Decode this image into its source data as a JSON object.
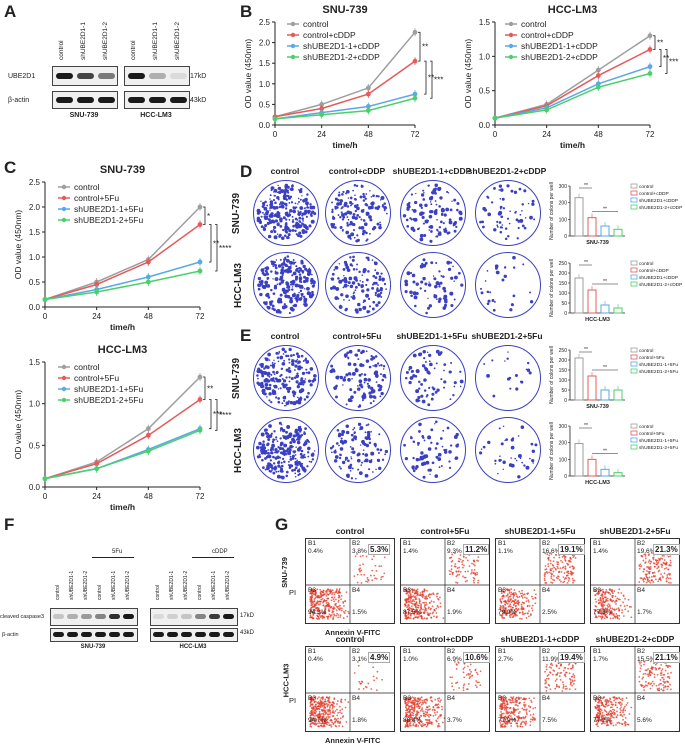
{
  "panels": {
    "A": "A",
    "B": "B",
    "C": "C",
    "D": "D",
    "E": "E",
    "F": "F",
    "G": "G"
  },
  "colors": {
    "control": "#9e9e9e",
    "control_drug": "#e55b5b",
    "sh1": "#5aa8e6",
    "sh2": "#4ccf6b",
    "dish": "#3b3fc4"
  },
  "panelA": {
    "lanes": [
      "control",
      "shUBE2D1-1",
      "shUBE2D1-2"
    ],
    "rows": [
      "UBE2D1",
      "β-actin"
    ],
    "kd": [
      "17kD",
      "43kD"
    ],
    "cells": [
      "SNU-739",
      "HCC-LM3"
    ]
  },
  "chart_data": [
    {
      "id": "B1",
      "type": "line",
      "title": "SNU-739",
      "xlabel": "time/h",
      "ylabel": "OD value (450nm)",
      "x": [
        0,
        24,
        48,
        72
      ],
      "ylim": [
        0,
        2.5
      ],
      "yticks": [
        "0.0",
        "0.5",
        "1.0",
        "1.5",
        "2.0",
        "2.5"
      ],
      "series": [
        {
          "name": "control",
          "values": [
            0.2,
            0.5,
            0.9,
            2.25
          ]
        },
        {
          "name": "control+cDDP",
          "values": [
            0.2,
            0.4,
            0.75,
            1.55
          ]
        },
        {
          "name": "shUBE2D1-1+cDDP",
          "values": [
            0.15,
            0.3,
            0.45,
            0.75
          ]
        },
        {
          "name": "shUBE2D1-2+cDDP",
          "values": [
            0.15,
            0.25,
            0.35,
            0.65
          ]
        }
      ],
      "sig": [
        "**",
        "**",
        "***"
      ]
    },
    {
      "id": "B2",
      "type": "line",
      "title": "HCC-LM3",
      "xlabel": "time/h",
      "ylabel": "OD value (450nm)",
      "x": [
        0,
        24,
        48,
        72
      ],
      "ylim": [
        0,
        1.5
      ],
      "yticks": [
        "0.0",
        "0.5",
        "1.0",
        "1.5"
      ],
      "series": [
        {
          "name": "control",
          "values": [
            0.1,
            0.3,
            0.8,
            1.3
          ]
        },
        {
          "name": "control+cDDP",
          "values": [
            0.1,
            0.28,
            0.72,
            1.1
          ]
        },
        {
          "name": "shUBE2D1-1+cDDP",
          "values": [
            0.1,
            0.25,
            0.6,
            0.85
          ]
        },
        {
          "name": "shUBE2D1-2+cDDP",
          "values": [
            0.1,
            0.22,
            0.55,
            0.75
          ]
        }
      ],
      "sig": [
        "**",
        "**",
        "***"
      ]
    },
    {
      "id": "C1",
      "type": "line",
      "title": "SNU-739",
      "xlabel": "time/h",
      "ylabel": "OD value (450nm)",
      "x": [
        0,
        24,
        48,
        72
      ],
      "ylim": [
        0,
        2.5
      ],
      "yticks": [
        "0.0",
        "0.5",
        "1.0",
        "1.5",
        "2.0",
        "2.5"
      ],
      "series": [
        {
          "name": "control",
          "values": [
            0.15,
            0.5,
            0.95,
            2.0
          ]
        },
        {
          "name": "control+5Fu",
          "values": [
            0.15,
            0.45,
            0.9,
            1.65
          ]
        },
        {
          "name": "shUBE2D1-1+5Fu",
          "values": [
            0.15,
            0.35,
            0.6,
            0.9
          ]
        },
        {
          "name": "shUBE2D1-2+5Fu",
          "values": [
            0.15,
            0.3,
            0.5,
            0.72
          ]
        }
      ],
      "sig": [
        "*",
        "**",
        "****"
      ]
    },
    {
      "id": "C2",
      "type": "line",
      "title": "HCC-LM3",
      "xlabel": "time/h",
      "ylabel": "OD value (450nm)",
      "x": [
        0,
        24,
        48,
        72
      ],
      "ylim": [
        0,
        1.5
      ],
      "yticks": [
        "0.0",
        "0.5",
        "1.0",
        "1.5"
      ],
      "series": [
        {
          "name": "control",
          "values": [
            0.1,
            0.3,
            0.7,
            1.32
          ]
        },
        {
          "name": "control+5Fu",
          "values": [
            0.1,
            0.28,
            0.62,
            1.05
          ]
        },
        {
          "name": "shUBE2D1-1+5Fu",
          "values": [
            0.1,
            0.22,
            0.45,
            0.7
          ]
        },
        {
          "name": "shUBE2D1-2+5Fu",
          "values": [
            0.1,
            0.22,
            0.43,
            0.68
          ]
        }
      ],
      "sig": [
        "**",
        "***",
        "****"
      ]
    },
    {
      "id": "D1",
      "type": "bar",
      "xlabel": "SNU-739",
      "ylabel": "Number of colons  per well",
      "categories": [
        "control",
        "control+cDDP",
        "shUBE2D1+cDDP",
        "shUBE2D1-2+cDDP"
      ],
      "values": [
        230,
        110,
        60,
        40
      ],
      "ylim": [
        0,
        300
      ],
      "yticks": [
        "0",
        "100",
        "200",
        "300"
      ]
    },
    {
      "id": "D2",
      "type": "bar",
      "xlabel": "HCC-LM3",
      "ylabel": "Number of colons  per well",
      "categories": [
        "control",
        "control+cDDP",
        "shUBE2D1+cDDP",
        "shUBE2D1-2+cDDP"
      ],
      "values": [
        175,
        115,
        40,
        25
      ],
      "ylim": [
        0,
        250
      ],
      "yticks": [
        "0",
        "50",
        "100",
        "150",
        "200",
        "250"
      ]
    },
    {
      "id": "E1",
      "type": "bar",
      "xlabel": "SNU-739",
      "ylabel": "Number of colons  per well",
      "categories": [
        "control",
        "control+5Fu",
        "shUBE2D1-1+5Fu",
        "shUBE2D1-2+5Fu"
      ],
      "values": [
        210,
        120,
        50,
        50
      ],
      "ylim": [
        0,
        250
      ],
      "yticks": [
        "0",
        "50",
        "100",
        "150",
        "200",
        "250"
      ]
    },
    {
      "id": "E2",
      "type": "bar",
      "xlabel": "HCC-LM3",
      "ylabel": "Number of colons  per well",
      "categories": [
        "control",
        "control+5Fu",
        "shUBE2D1-1+5Fu",
        "shUBE2D1-2+5Fu"
      ],
      "values": [
        195,
        100,
        40,
        20
      ],
      "ylim": [
        0,
        300
      ],
      "yticks": [
        "0",
        "100",
        "200",
        "300"
      ]
    }
  ],
  "panelD": {
    "headers": [
      "control",
      "control+cDDP",
      "shUBE2D1-1+cDDP",
      "shUBE2D1-2+cDDP"
    ],
    "rows": [
      "SNU-739",
      "HCC-LM3"
    ]
  },
  "panelE": {
    "headers": [
      "control",
      "control+5Fu",
      "shUBE2D1-1+5Fu",
      "shUBE2D1-2+5Fu"
    ],
    "rows": [
      "SNU-739",
      "HCC-LM3"
    ]
  },
  "panelF": {
    "lanes_left": [
      "control",
      "shUBE2D1-1",
      "shUBE2D1-2",
      "control",
      "shUBE2D1-1",
      "shUBE2D1-2"
    ],
    "lanes_right": [
      "control",
      "shUBE2D1-1",
      "shUBE2D1-2",
      "control",
      "shUBE2D1-1",
      "shUBE2D1-2"
    ],
    "drug_left": "5Fu",
    "drug_right": "cDDP",
    "rows": [
      "cleaved caspase3",
      "β-actin"
    ],
    "kd": [
      "17kD",
      "43kD"
    ],
    "cells": [
      "SNU-739",
      "HCC-LM3"
    ]
  },
  "panelG": {
    "headers_top": [
      "control",
      "control+5Fu",
      "shUBE2D1-1+5Fu",
      "shUBE2D1-2+5Fu"
    ],
    "headers_bottom": [
      "control",
      "control+cDDP",
      "shUBE2D1-1+cDDP",
      "shUBE2D1-2+cDDP"
    ],
    "rows": [
      "SNU-739",
      "HCC-LM3"
    ],
    "ylabel": "PI",
    "xlabel": "Annexin V-FITC",
    "top": [
      {
        "b1": "0.4%",
        "b2": "3.8%",
        "b3": "94.3%",
        "b4": "1.5%",
        "total": "5.3%"
      },
      {
        "b1": "1.4%",
        "b2": "9.3%",
        "b3": "87.5%",
        "b4": "1.9%",
        "total": "11.2%"
      },
      {
        "b1": "1.1%",
        "b2": "16.6%",
        "b3": "79.9%",
        "b4": "2.5%",
        "total": "19.1%"
      },
      {
        "b1": "1.4%",
        "b2": "19.6%",
        "b3": "77.3%",
        "b4": "1.7%",
        "total": "21.3%"
      }
    ],
    "bottom": [
      {
        "b1": "0.4%",
        "b2": "3.1%",
        "b3": "94.7%",
        "b4": "1.8%",
        "total": "4.9%"
      },
      {
        "b1": "1.0%",
        "b2": "6.9%",
        "b3": "88.4%",
        "b4": "3.7%",
        "total": "10.6%"
      },
      {
        "b1": "2.7%",
        "b2": "11.9%",
        "b3": "77.9%",
        "b4": "7.5%",
        "total": "19.4%"
      },
      {
        "b1": "1.7%",
        "b2": "15.5%",
        "b3": "77.2%",
        "b4": "5.6%",
        "total": "21.1%"
      }
    ]
  }
}
